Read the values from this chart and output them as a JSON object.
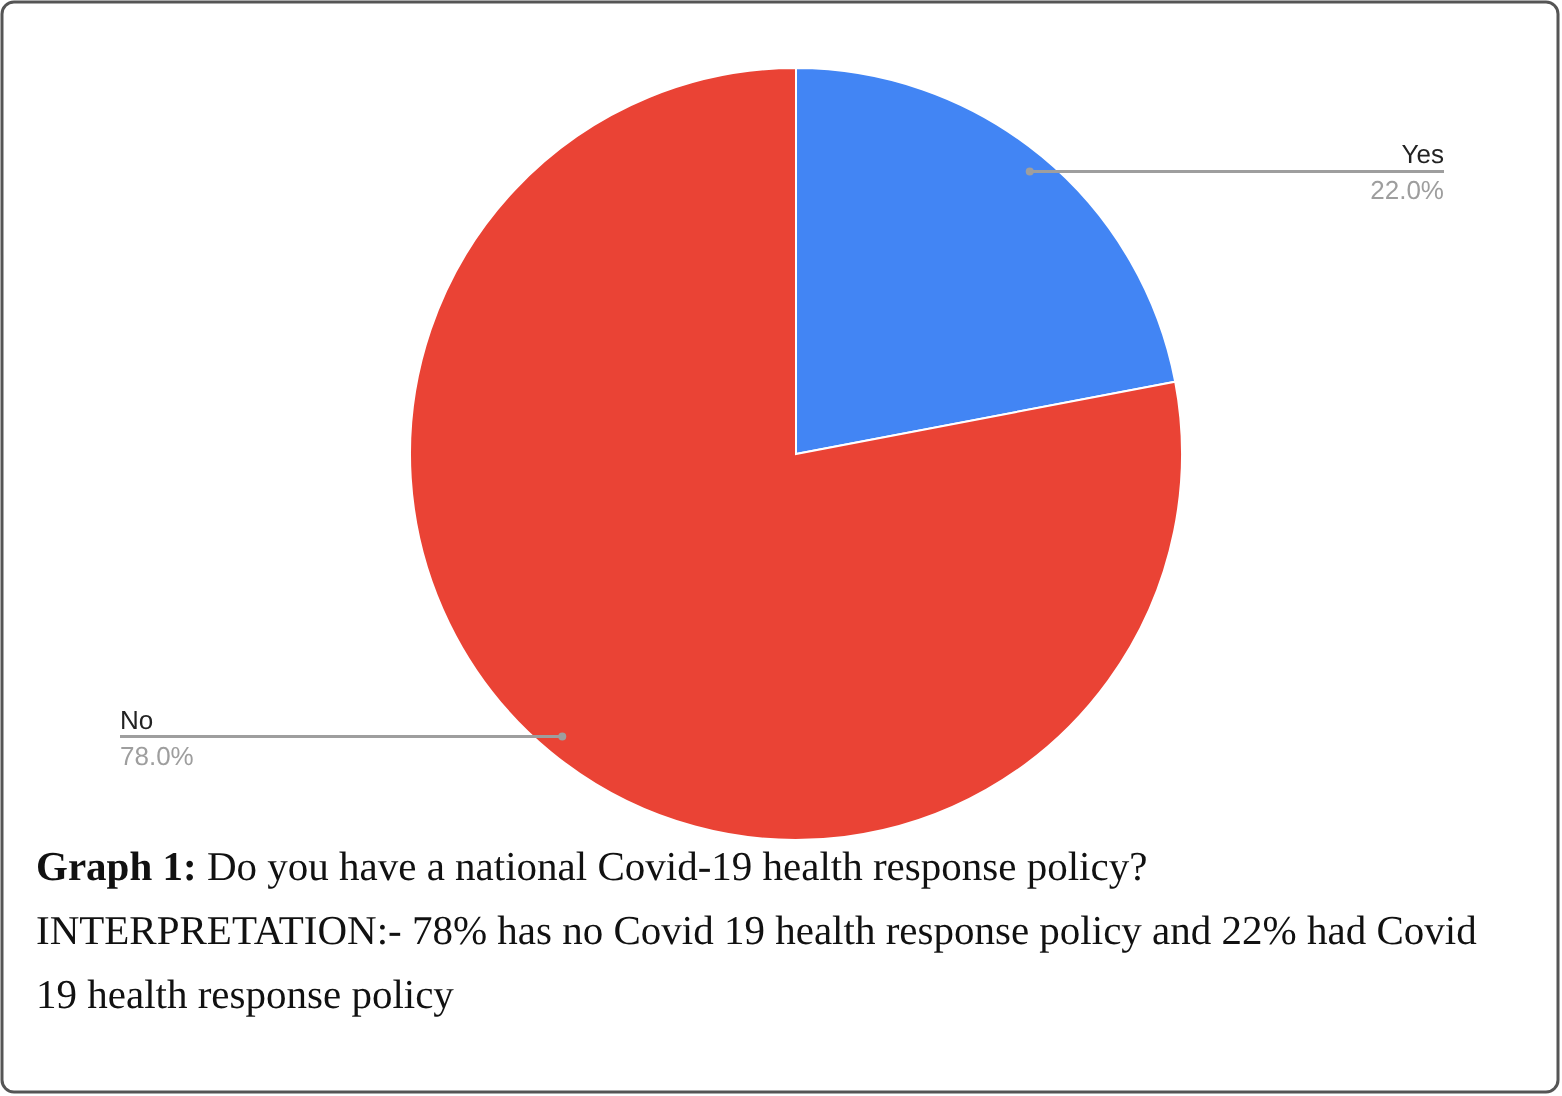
{
  "chart_data": {
    "type": "pie",
    "title": "Graph 1:",
    "subtitle": "Do you have a national Covid-19 health response policy?",
    "annotations": [
      "INTERPRETATION:- 78% has no Covid 19 health response policy and 22% had Covid 19 health response policy"
    ],
    "categories": [
      "Yes",
      "No"
    ],
    "values": [
      22.0,
      78.0
    ],
    "colors": [
      "#4285f4",
      "#ea4335"
    ],
    "value_labels": [
      "22.0%",
      "78.0%"
    ]
  }
}
